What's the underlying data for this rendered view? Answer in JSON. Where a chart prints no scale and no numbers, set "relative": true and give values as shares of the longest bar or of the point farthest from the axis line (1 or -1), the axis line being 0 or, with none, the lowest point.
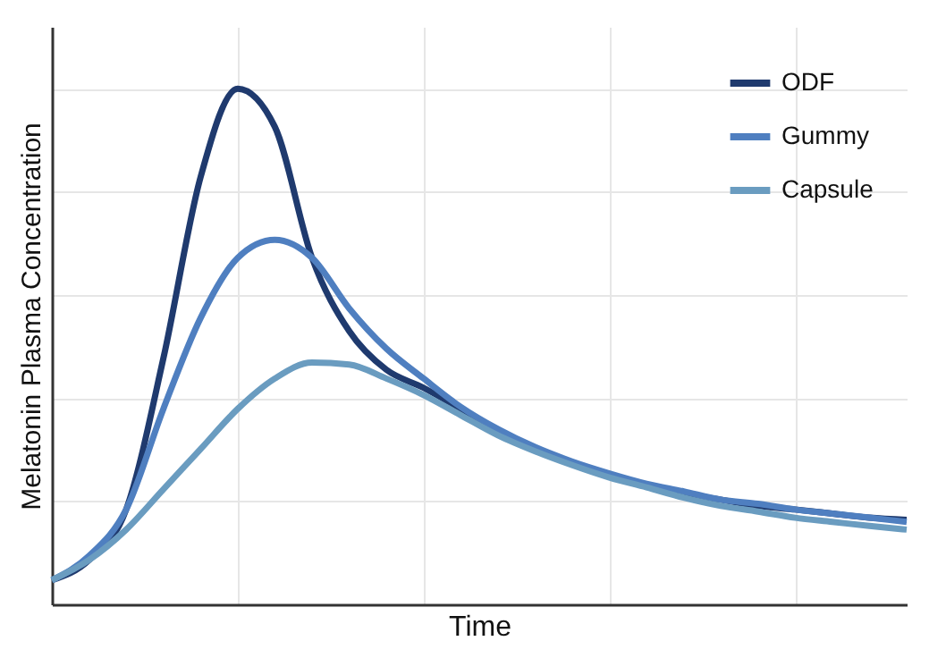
{
  "chart_data": {
    "type": "line",
    "xlabel": "Time",
    "ylabel": "Melatonin Plasma Concentration",
    "relative": true,
    "grid": true,
    "legend": "top right",
    "tick_labels": false,
    "marker": "none",
    "line_style": "solid",
    "categories": [
      null,
      null,
      null,
      null,
      null,
      null,
      null,
      null,
      null,
      null,
      null,
      null,
      null,
      null,
      null,
      null,
      null,
      null,
      null,
      null,
      null,
      null,
      null,
      null
    ],
    "series": [
      {
        "name": "ODF",
        "color": "#1f3a6e",
        "values": [
          0.047,
          0.086,
          0.184,
          0.477,
          0.828,
          1.0,
          0.926,
          0.672,
          0.53,
          0.455,
          0.42,
          0.379,
          0.336,
          0.301,
          0.273,
          0.25,
          0.23,
          0.215,
          0.203,
          0.191,
          0.184,
          0.176,
          0.168,
          0.164
        ]
      },
      {
        "name": "Gummy",
        "color": "#4f7fc0",
        "values": [
          0.047,
          0.094,
          0.184,
          0.379,
          0.555,
          0.672,
          0.707,
          0.672,
          0.574,
          0.496,
          0.438,
          0.383,
          0.34,
          0.305,
          0.277,
          0.254,
          0.234,
          0.219,
          0.203,
          0.195,
          0.184,
          0.176,
          0.168,
          0.16
        ]
      },
      {
        "name": "Capsule",
        "color": "#6a9cc0",
        "values": [
          0.047,
          0.086,
          0.145,
          0.223,
          0.301,
          0.379,
          0.438,
          0.469,
          0.465,
          0.438,
          0.406,
          0.367,
          0.328,
          0.297,
          0.27,
          0.246,
          0.227,
          0.207,
          0.191,
          0.18,
          0.168,
          0.16,
          0.152,
          0.145
        ]
      }
    ]
  }
}
